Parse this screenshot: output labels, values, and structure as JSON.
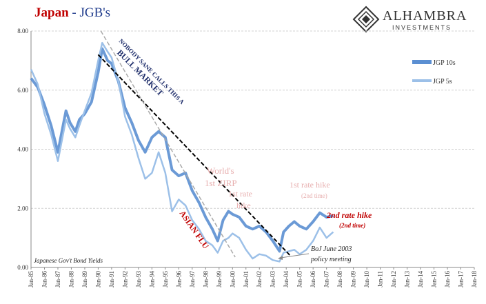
{
  "header": {
    "title_main": "Japan",
    "title_sep": " - ",
    "title_sub": "JGB's",
    "brand_name": "ALHAMBRA",
    "brand_sub": "INVESTMENTS"
  },
  "colors": {
    "series_10y": "#5b8fd2",
    "series_5y": "#9cc0e8",
    "title_red": "#c00000",
    "title_blue": "#1f3b8c",
    "annotation_pink": "#e7aeae",
    "annotation_dark_red": "#c00000",
    "annotation_navy": "#1f2e6b"
  },
  "chart_data": {
    "type": "line",
    "title": "Japan - JGB's",
    "xlabel": "",
    "ylabel": "",
    "ylim": [
      0,
      8
    ],
    "xlim": [
      "Jan-85",
      "Jan-18"
    ],
    "grid": true,
    "legend": "top-right",
    "y_ticks": [
      "0.00",
      "2.00",
      "4.00",
      "6.00",
      "8.00"
    ],
    "x_ticks": [
      "Jan-85",
      "Jan-86",
      "Jan-87",
      "Jan-88",
      "Jan-89",
      "Jan-90",
      "Jan-91",
      "Jan-92",
      "Jan-93",
      "Jan-94",
      "Jan-95",
      "Jan-96",
      "Jan-97",
      "Jan-98",
      "Jan-99",
      "Jan-00",
      "Jan-01",
      "Jan-02",
      "Jan-03",
      "Jan-04",
      "Jan-05",
      "Jan-06",
      "Jan-07",
      "Jan-08",
      "Jan-09",
      "Jan-10",
      "Jan-11",
      "Jan-12",
      "Jan-13",
      "Jan-14",
      "Jan-15",
      "Jan-16",
      "Jan-17",
      "Jan-18"
    ],
    "series": [
      {
        "name": "JGP 10s",
        "x": [
          1985.0,
          1985.5,
          1986.0,
          1986.5,
          1987.0,
          1987.3,
          1987.6,
          1987.9,
          1988.3,
          1988.6,
          1989.0,
          1989.5,
          1990.0,
          1990.3,
          1990.7,
          1991.0,
          1991.5,
          1992.0,
          1992.5,
          1993.0,
          1993.5,
          1994.0,
          1994.5,
          1995.0,
          1995.5,
          1996.0,
          1996.5,
          1997.0,
          1997.5,
          1998.0,
          1998.5,
          1998.9,
          1999.3,
          1999.7,
          2000.0,
          2000.5,
          2001.0,
          2001.5,
          2002.0,
          2002.5,
          2003.0,
          2003.5,
          2003.8,
          2004.2,
          2004.6,
          2005.0,
          2005.5,
          2006.0,
          2006.5,
          2007.0,
          2007.5
        ],
        "values": [
          6.4,
          6.1,
          5.5,
          4.8,
          3.9,
          4.6,
          5.3,
          4.9,
          4.6,
          5.0,
          5.2,
          5.6,
          6.6,
          7.4,
          7.0,
          6.9,
          6.3,
          5.4,
          4.9,
          4.3,
          3.9,
          4.4,
          4.6,
          4.4,
          3.3,
          3.1,
          3.2,
          2.6,
          2.2,
          1.7,
          1.3,
          0.9,
          1.6,
          1.9,
          1.8,
          1.7,
          1.4,
          1.3,
          1.4,
          1.2,
          0.9,
          0.55,
          1.2,
          1.4,
          1.55,
          1.4,
          1.3,
          1.55,
          1.85,
          1.7,
          1.75
        ]
      },
      {
        "name": "JGP 5s",
        "x": [
          1985.0,
          1985.5,
          1986.0,
          1986.5,
          1987.0,
          1987.3,
          1987.6,
          1987.9,
          1988.3,
          1988.6,
          1989.0,
          1989.5,
          1990.0,
          1990.3,
          1990.7,
          1991.0,
          1991.5,
          1992.0,
          1992.5,
          1993.0,
          1993.5,
          1994.0,
          1994.5,
          1995.0,
          1995.5,
          1996.0,
          1996.5,
          1997.0,
          1997.5,
          1998.0,
          1998.5,
          1998.9,
          1999.3,
          1999.7,
          2000.0,
          2000.5,
          2001.0,
          2001.5,
          2002.0,
          2002.5,
          2003.0,
          2003.5,
          2003.8,
          2004.2,
          2004.6,
          2005.0,
          2005.5,
          2006.0,
          2006.5,
          2007.0,
          2007.5
        ],
        "values": [
          6.7,
          6.2,
          5.2,
          4.5,
          3.6,
          4.3,
          5.0,
          4.7,
          4.4,
          4.8,
          5.3,
          5.9,
          7.0,
          7.6,
          7.3,
          7.1,
          6.3,
          5.1,
          4.5,
          3.7,
          3.0,
          3.2,
          3.9,
          3.2,
          1.9,
          2.3,
          2.1,
          1.6,
          1.3,
          0.9,
          0.75,
          0.5,
          0.9,
          1.0,
          1.15,
          1.0,
          0.6,
          0.3,
          0.45,
          0.4,
          0.25,
          0.2,
          0.5,
          0.55,
          0.6,
          0.45,
          0.6,
          0.9,
          1.35,
          1.0,
          1.2
        ]
      }
    ],
    "annotations": [
      {
        "text": "NOBODY SANE CALLS THIS A",
        "line2": "BULL MARKET"
      },
      {
        "text": "ASIAN FLU"
      },
      {
        "text": "World's",
        "line2": "1st ZIRP"
      },
      {
        "text": "1st rate",
        "line2": "hike"
      },
      {
        "text": "1st rate hike",
        "line2": "(2nd time)"
      },
      {
        "text": "2nd rate hike",
        "line2": "(2nd time)"
      },
      {
        "text": "BoJ June 2003",
        "line2": "policy meeting"
      },
      {
        "text": "Japanese Gov't Bond Yields"
      }
    ]
  }
}
